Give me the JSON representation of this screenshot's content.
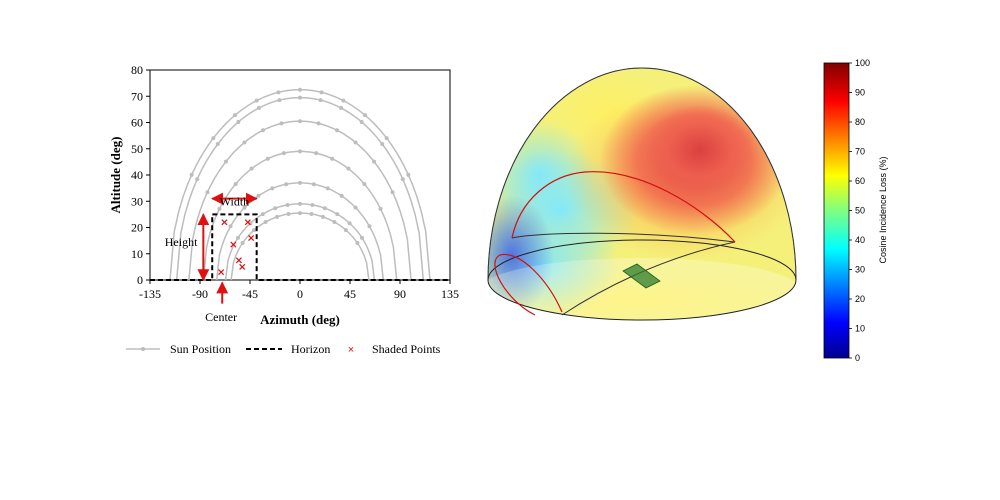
{
  "chart_data": [
    {
      "type": "line",
      "xlabel": "Azimuth (deg)",
      "ylabel": "Altitude (deg)",
      "xlim": [
        -135,
        135
      ],
      "ylim": [
        0,
        80
      ],
      "xticks": [
        -135,
        -90,
        -45,
        0,
        45,
        90,
        135
      ],
      "yticks": [
        0,
        10,
        20,
        30,
        40,
        50,
        60,
        70,
        80
      ],
      "grid": false,
      "legend_position": "bottom",
      "series": [
        {
          "name": "Sun Position",
          "kind": "sun-paths",
          "color": "#bdbdbd",
          "paths": [
            {
              "peak": 72.5,
              "half_width": 117
            },
            {
              "peak": 69.5,
              "half_width": 111
            },
            {
              "peak": 60.5,
              "half_width": 100
            },
            {
              "peak": 49,
              "half_width": 87
            },
            {
              "peak": 37,
              "half_width": 75
            },
            {
              "peak": 29,
              "half_width": 67
            },
            {
              "peak": 25.5,
              "half_width": 62
            }
          ]
        },
        {
          "name": "Horizon",
          "kind": "horizon",
          "color": "#000000",
          "x": [
            -135,
            -79,
            -79,
            -39,
            -39,
            135
          ],
          "y": [
            0,
            0,
            25,
            25,
            0,
            0
          ]
        },
        {
          "name": "Shaded Points",
          "kind": "markers",
          "color": "#e01010",
          "x": [
            -68,
            -47,
            -60,
            -44,
            -55,
            -52,
            -71
          ],
          "y": [
            22,
            22,
            13.5,
            16,
            7.5,
            5,
            3
          ]
        }
      ],
      "annotations": [
        {
          "text": "Width",
          "x": -59,
          "y": 30
        },
        {
          "text": "Height",
          "x": -107,
          "y": 14.5
        },
        {
          "text": "Center",
          "x": -71,
          "y": -14
        }
      ]
    },
    {
      "type": "heatmap",
      "colorbar": {
        "label": "Cosine Incidence Loss (%)",
        "range": [
          0,
          100
        ],
        "ticks": [
          0,
          10,
          20,
          30,
          40,
          50,
          60,
          70,
          80,
          90,
          100
        ]
      }
    }
  ]
}
